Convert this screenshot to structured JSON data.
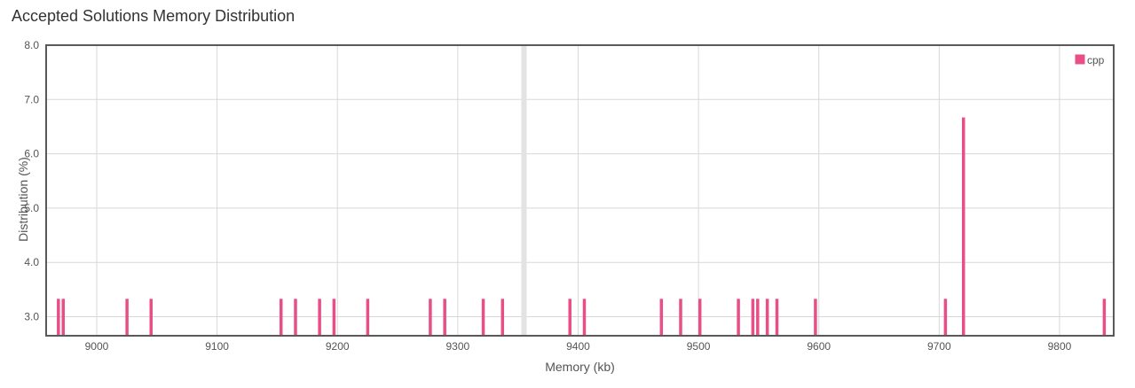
{
  "page": {
    "title": "Accepted Solutions Memory Distribution"
  },
  "colors": {
    "bar": "#e94f87",
    "highlight": "#e3e3e3",
    "grid": "#d8d8d8",
    "frame": "#595959"
  },
  "chart_data": {
    "type": "bar",
    "title": "Accepted Solutions Memory Distribution",
    "xlabel": "Memory (kb)",
    "ylabel": "Distribution (%)",
    "xlim": [
      8958,
      9845
    ],
    "ylim": [
      2.65,
      8.0
    ],
    "xticks": [
      "9000",
      "9100",
      "9200",
      "9300",
      "9400",
      "9500",
      "9600",
      "9700",
      "9800"
    ],
    "yticks": [
      "3.0",
      "4.0",
      "5.0",
      "6.0",
      "7.0",
      "8.0"
    ],
    "grid": true,
    "legend_position": "top-right",
    "highlight_x": 9355,
    "series": [
      {
        "name": "cpp",
        "points": [
          {
            "x": 8968,
            "y": 3.33
          },
          {
            "x": 8972,
            "y": 3.33
          },
          {
            "x": 9025,
            "y": 3.33
          },
          {
            "x": 9045,
            "y": 3.33
          },
          {
            "x": 9153,
            "y": 3.33
          },
          {
            "x": 9165,
            "y": 3.33
          },
          {
            "x": 9185,
            "y": 3.33
          },
          {
            "x": 9197,
            "y": 3.33
          },
          {
            "x": 9225,
            "y": 3.33
          },
          {
            "x": 9277,
            "y": 3.33
          },
          {
            "x": 9289,
            "y": 3.33
          },
          {
            "x": 9321,
            "y": 3.33
          },
          {
            "x": 9337,
            "y": 3.33
          },
          {
            "x": 9393,
            "y": 3.33
          },
          {
            "x": 9405,
            "y": 3.33
          },
          {
            "x": 9469,
            "y": 3.33
          },
          {
            "x": 9485,
            "y": 3.33
          },
          {
            "x": 9501,
            "y": 3.33
          },
          {
            "x": 9533,
            "y": 3.33
          },
          {
            "x": 9545,
            "y": 3.33
          },
          {
            "x": 9549,
            "y": 3.33
          },
          {
            "x": 9557,
            "y": 3.33
          },
          {
            "x": 9565,
            "y": 3.33
          },
          {
            "x": 9597,
            "y": 3.33
          },
          {
            "x": 9705,
            "y": 3.33
          },
          {
            "x": 9720,
            "y": 6.67
          },
          {
            "x": 9837,
            "y": 3.33
          }
        ]
      }
    ]
  }
}
